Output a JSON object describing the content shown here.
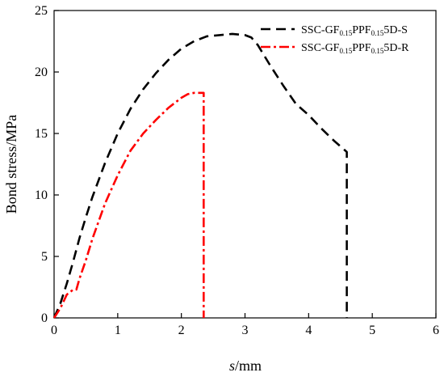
{
  "chart_data": {
    "type": "line",
    "xlabel_var": "s",
    "xlabel_unit": "/mm",
    "ylabel": "Bond stress/MPa",
    "xlim": [
      0,
      6
    ],
    "ylim": [
      0,
      25
    ],
    "xticks": [
      0,
      1,
      2,
      3,
      4,
      5,
      6
    ],
    "yticks": [
      0,
      5,
      10,
      15,
      20,
      25
    ],
    "grid": false,
    "legend_placement": "top-right",
    "series": [
      {
        "name": "SSC-GF0.15PPF0.155D-S",
        "legend_parts": [
          {
            "text": "SSC-GF",
            "sub": false
          },
          {
            "text": "0.15",
            "sub": true
          },
          {
            "text": "PPF",
            "sub": false
          },
          {
            "text": "0.15",
            "sub": true
          },
          {
            "text": "5D-S",
            "sub": false
          }
        ],
        "color": "#000000",
        "dash": "dashed",
        "x": [
          0,
          0.1,
          0.2,
          0.3,
          0.4,
          0.5,
          0.6,
          0.8,
          1.0,
          1.2,
          1.4,
          1.6,
          1.8,
          2.0,
          2.2,
          2.4,
          2.6,
          2.8,
          3.0,
          3.1,
          3.2,
          3.4,
          3.6,
          3.8,
          4.0,
          4.2,
          4.4,
          4.6,
          4.6,
          4.6
        ],
        "y": [
          0,
          1.2,
          2.8,
          4.6,
          6.5,
          8.2,
          9.8,
          12.6,
          15.0,
          17.0,
          18.6,
          19.9,
          21.0,
          21.9,
          22.5,
          22.9,
          23.0,
          23.1,
          23.0,
          22.8,
          22.2,
          20.5,
          18.9,
          17.4,
          16.5,
          15.4,
          14.4,
          13.5,
          5,
          0
        ]
      },
      {
        "name": "SSC-GF0.15PPF0.155D-R",
        "legend_parts": [
          {
            "text": "SSC-GF",
            "sub": false
          },
          {
            "text": "0.15",
            "sub": true
          },
          {
            "text": "PPF",
            "sub": false
          },
          {
            "text": "0.15",
            "sub": true
          },
          {
            "text": "5D-R",
            "sub": false
          }
        ],
        "color": "#ff0000",
        "dash": "dashdot",
        "x": [
          0,
          0.1,
          0.2,
          0.3,
          0.35,
          0.4,
          0.5,
          0.6,
          0.8,
          1.0,
          1.2,
          1.4,
          1.6,
          1.8,
          2.0,
          2.1,
          2.2,
          2.3,
          2.35,
          2.35,
          2.35
        ],
        "y": [
          0,
          0.8,
          1.9,
          2.3,
          2.3,
          3.2,
          4.7,
          6.4,
          9.3,
          11.6,
          13.6,
          15.0,
          16.1,
          17.1,
          17.9,
          18.2,
          18.3,
          18.3,
          18.3,
          5,
          0
        ]
      }
    ]
  }
}
